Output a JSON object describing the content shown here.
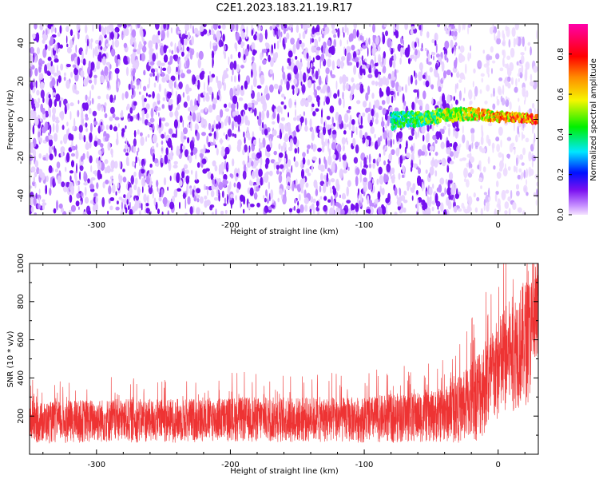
{
  "title": "C2E1.2023.183.21.19.R17",
  "colors": {
    "snr_line": "#ee3333",
    "spectrogram_background": "#e9d2ff",
    "spectrogram_noise": "#7b16ee"
  },
  "chart_data": [
    {
      "type": "heatmap",
      "xlabel": "Height of straight line (km)",
      "ylabel": "Frequency (Hz)",
      "xlim": [
        -350,
        30
      ],
      "ylim": [
        -50,
        50
      ],
      "xticks": [
        -300,
        -200,
        -100,
        0
      ],
      "yticks": [
        -40,
        -20,
        0,
        20,
        40
      ],
      "colorbar": {
        "label": "Normalized spectral amplitude",
        "colormap": "rainbow-to-magenta",
        "range": [
          0,
          0.95
        ],
        "ticks": [
          0.0,
          0.2,
          0.4,
          0.6,
          0.8
        ]
      },
      "features": {
        "noise_dense_x_range": [
          -350,
          -30
        ],
        "noise_sparse_x_range": [
          -30,
          30
        ],
        "signal_band": {
          "x_range": [
            -80,
            30
          ],
          "frequency_start_hz": -1,
          "frequency_mid_hz": 3,
          "frequency_end_hz": 0,
          "half_width_hz": 3,
          "amplitude_start": 0.45,
          "amplitude_end": 0.95
        }
      }
    },
    {
      "type": "line",
      "xlabel": "Height of straight line (km)",
      "ylabel": "SNR (10 * v/v)",
      "xlim": [
        -350,
        30
      ],
      "ylim": [
        0,
        1000
      ],
      "xticks": [
        -300,
        -200,
        -100,
        0
      ],
      "yticks": [
        200,
        400,
        600,
        800,
        1000
      ],
      "series": [
        {
          "x": [
            -350,
            -300,
            -250,
            -200,
            -150,
            -100,
            -75,
            -50,
            -35,
            -25,
            -15,
            -5,
            5,
            15,
            22,
            30
          ],
          "y_low": [
            55,
            60,
            60,
            65,
            60,
            60,
            60,
            60,
            60,
            60,
            70,
            120,
            200,
            240,
            260,
            420
          ],
          "y_high": [
            270,
            290,
            290,
            300,
            300,
            300,
            320,
            330,
            370,
            440,
            560,
            650,
            780,
            870,
            930,
            960
          ]
        }
      ]
    }
  ]
}
